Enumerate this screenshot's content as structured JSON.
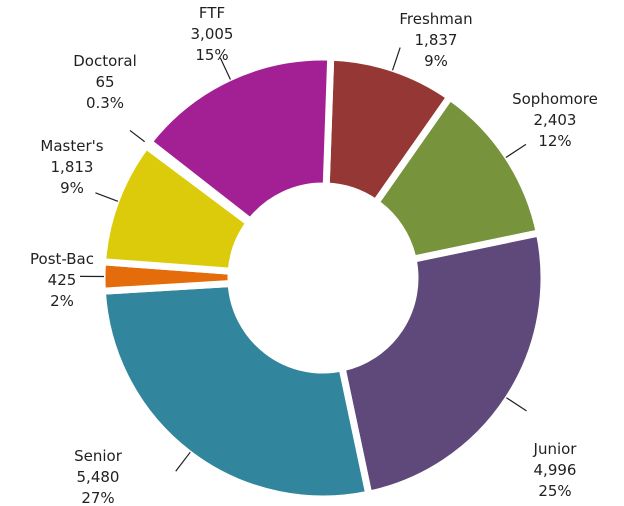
{
  "chart_data": {
    "type": "donut",
    "categories": [
      "Freshman",
      "Sophomore",
      "Junior",
      "Senior",
      "Post-Bac",
      "Master's",
      "Doctoral",
      "FTF"
    ],
    "values": [
      1837,
      2403,
      4996,
      5480,
      425,
      1813,
      65,
      3005
    ],
    "value_labels": [
      "1,837",
      "2,403",
      "4,996",
      "5,480",
      "425",
      "1,813",
      "65",
      "3,005"
    ],
    "percents": [
      9,
      12,
      25,
      27,
      2,
      9,
      0.3,
      15
    ],
    "percent_labels": [
      "9%",
      "12%",
      "25%",
      "27%",
      "2%",
      "9%",
      "0.3%",
      "15%"
    ],
    "colors": [
      "#953735",
      "#77933c",
      "#5f497a",
      "#31859c",
      "#e46c0a",
      "#dccb0a",
      "#7f7f7f",
      "#a31f94"
    ]
  }
}
